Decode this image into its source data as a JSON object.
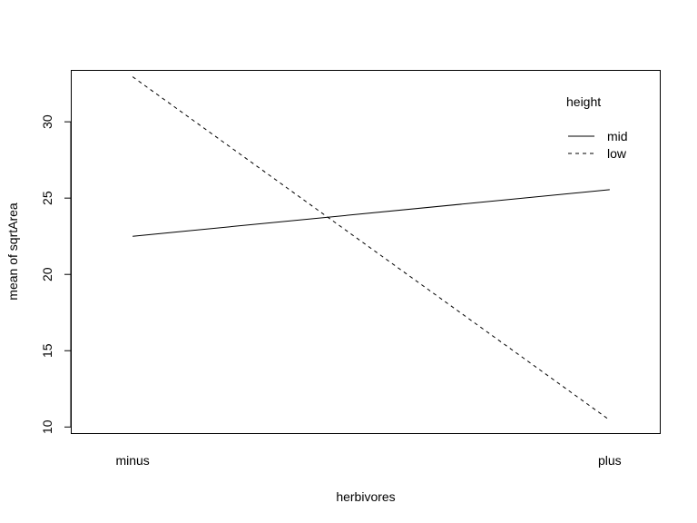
{
  "chart_data": {
    "type": "line",
    "xlabel": "herbivores",
    "ylabel": "mean of  sqrtArea",
    "categories": [
      "minus",
      "plus"
    ],
    "ylim": [
      9.6,
      33.4
    ],
    "yticks": [
      10,
      15,
      20,
      25,
      30
    ],
    "grid": false,
    "legend": {
      "title": "height",
      "placement": "top-right"
    },
    "series": [
      {
        "name": "mid",
        "values": [
          22.5,
          25.55
        ],
        "dash": "solid"
      },
      {
        "name": "low",
        "values": [
          32.95,
          10.45
        ],
        "dash": "dashed"
      }
    ]
  }
}
